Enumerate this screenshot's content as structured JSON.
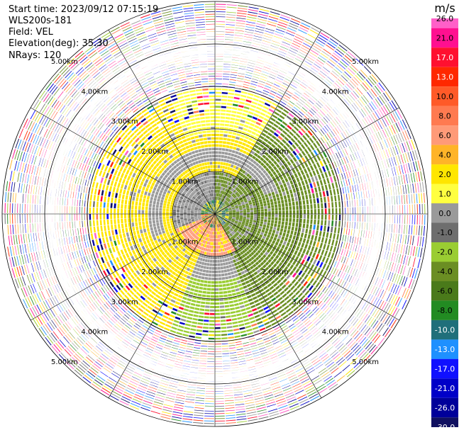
{
  "header": {
    "start_time": "Start time: 2023/09/12 07:15:19",
    "instrument": "WLS200s-181",
    "field": "Field: VEL",
    "elevation": "Elevation(deg): 35.30",
    "nrays": "NRays: 120"
  },
  "colorbar": {
    "unit": "m/s",
    "ticks": [
      "26.0",
      "21.0",
      "17.0",
      "13.0",
      "10.0",
      "8.0",
      "6.0",
      "4.0",
      "2.0",
      "1.0",
      "0.0",
      "-1.0",
      "-2.0",
      "-4.0",
      "-6.0",
      "-8.0",
      "-10.0",
      "-13.0",
      "-17.0",
      "-21.0",
      "-26.0",
      "-30.0"
    ],
    "colors": [
      "#ff60c8",
      "#ff1090",
      "#ff1030",
      "#ff2800",
      "#ff5a28",
      "#ff7a50",
      "#ff9a78",
      "#ffb428",
      "#ffe600",
      "#ffff40",
      "#9a9a9a",
      "#6e6e6e",
      "#9acd32",
      "#6b8e23",
      "#4a7a1a",
      "#228b22",
      "#1f6f7a",
      "#1e90ff",
      "#1010ff",
      "#0000c8",
      "#00009a",
      "#101060"
    ]
  },
  "chart_data": {
    "type": "heatmap",
    "title": "",
    "projection": "polar (PPI)",
    "field": "VEL",
    "units": "m/s",
    "n_rays": 120,
    "elevation_deg": 35.3,
    "range_ring_labels": [
      "1.00km",
      "2.00km",
      "3.00km",
      "4.00km",
      "5.00km"
    ],
    "range_rings_km": [
      1,
      2,
      3,
      4,
      5
    ],
    "max_range_km": 5.0,
    "pattern": "inner 1 km gray/green low speeds with orange-red core; yellow (+1 to +2 m/s) region to the west and north, olive-green (-2 to -4 m/s) region to the south-east; beyond ~3 km noisy multicolour returns",
    "colorbar_range": [
      -30,
      26
    ]
  }
}
